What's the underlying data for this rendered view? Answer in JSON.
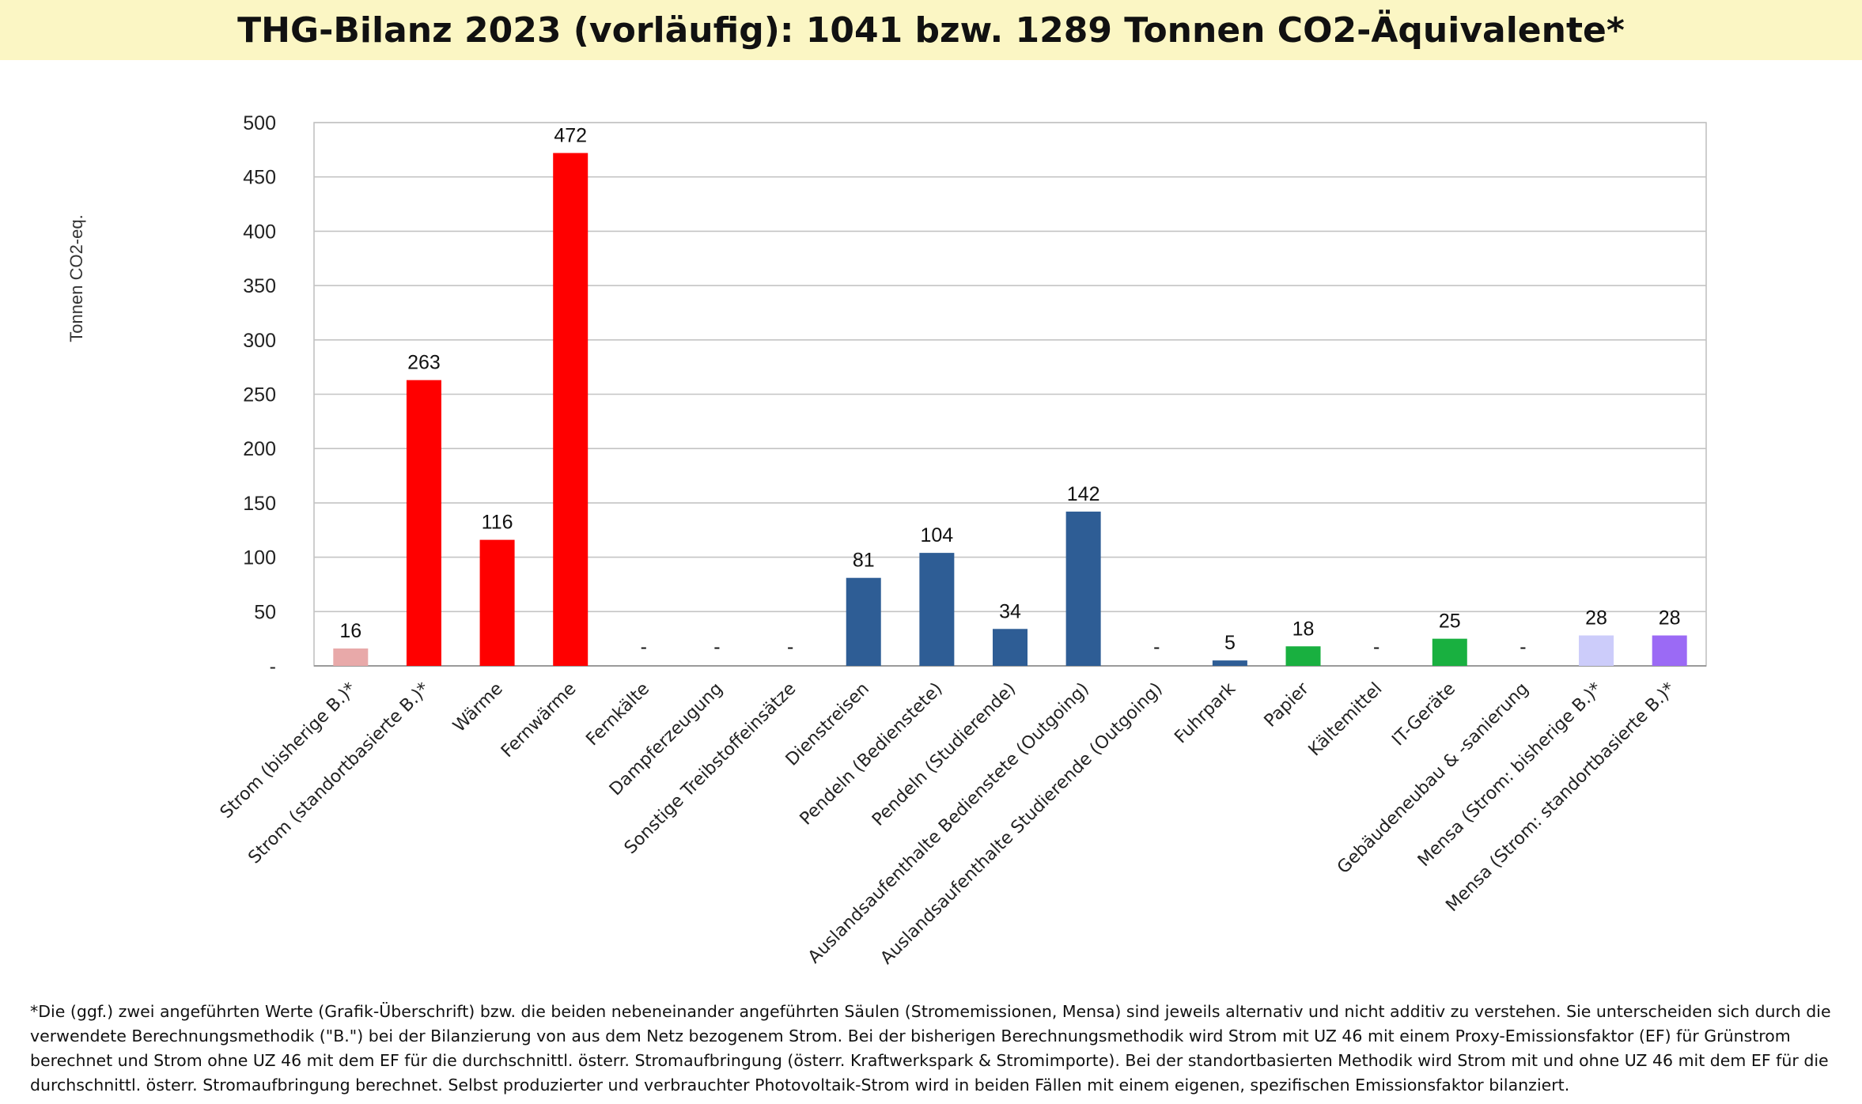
{
  "title": "THG-Bilanz 2023 (vorläufig): 1041 bzw. 1289 Tonnen CO2-Äquivalente*",
  "footnote": "*Die (ggf.) zwei angeführten Werte (Grafik-Überschrift) bzw. die beiden nebeneinander angeführten Säulen (Stromemissionen, Mensa) sind jeweils alternativ und nicht additiv zu verstehen. Sie unterscheiden sich durch die verwendete Berechnungsmethodik (\"B.\") bei der Bilanzierung von aus dem Netz bezogenem Strom. Bei der bisherigen Berechnungsmethodik wird Strom mit UZ 46 mit einem Proxy-Emissionsfaktor (EF) für Grünstrom berechnet und Strom ohne UZ 46 mit dem EF für die durchschnittl. österr. Stromaufbringung (österr. Kraftwerkspark & Stromimporte). Bei der standortbasierten Methodik wird Strom mit und ohne UZ 46 mit dem EF für die durchschnittl. österr. Stromaufbringung berechnet. Selbst produzierter und verbrauchter Photovoltaik-Strom wird in beiden Fällen mit einem eigenen, spezifischen Emissionsfaktor bilanziert.",
  "chart_data": {
    "type": "bar",
    "title": "",
    "xlabel": "",
    "ylabel": "Tonnen CO2-eq.",
    "ylim": [
      0,
      500
    ],
    "yticks": [
      0,
      50,
      100,
      150,
      200,
      250,
      300,
      350,
      400,
      450,
      500
    ],
    "ytick_labels": [
      "-",
      "50",
      "100",
      "150",
      "200",
      "250",
      "300",
      "350",
      "400",
      "450",
      "500"
    ],
    "grid": true,
    "legend": "none",
    "categories": [
      "Strom (bisherige B.)*",
      "Strom (standortbasierte B.)*",
      "Wärme",
      "Fernwärme",
      "Fernkälte",
      "Dampferzeugung",
      "Sonstige Treibstoffeinsätze",
      "Dienstreisen",
      "Pendeln (Bedienstete)",
      "Pendeln (Studierende)",
      "Auslandsaufenthalte Bedienstete (Outgoing)",
      "Auslandsaufenthalte Studierende (Outgoing)",
      "Fuhrpark",
      "Papier",
      "Kältemittel",
      "IT-Geräte",
      "Gebäudeneubau & -sanierung",
      "Mensa (Strom: bisherige B.)*",
      "Mensa (Strom: standortbasierte B.)*"
    ],
    "values": [
      16,
      263,
      116,
      472,
      0,
      0,
      0,
      81,
      104,
      34,
      142,
      0,
      5,
      18,
      0,
      25,
      0,
      28,
      28
    ],
    "data_labels": [
      "16",
      "263",
      "116",
      "472",
      "-",
      "-",
      "-",
      "81",
      "104",
      "34",
      "142",
      "-",
      "5",
      "18",
      "-",
      "25",
      "-",
      "28",
      "28"
    ],
    "colors": [
      "#e8a9a9",
      "#ff0000",
      "#ff0000",
      "#ff0000",
      "#ff0000",
      "#ff0000",
      "#ff0000",
      "#2e5d95",
      "#2e5d95",
      "#2e5d95",
      "#2e5d95",
      "#2e5d95",
      "#2e5d95",
      "#19b040",
      "#19b040",
      "#19b040",
      "#19b040",
      "#ccccfa",
      "#9b6af5"
    ]
  }
}
